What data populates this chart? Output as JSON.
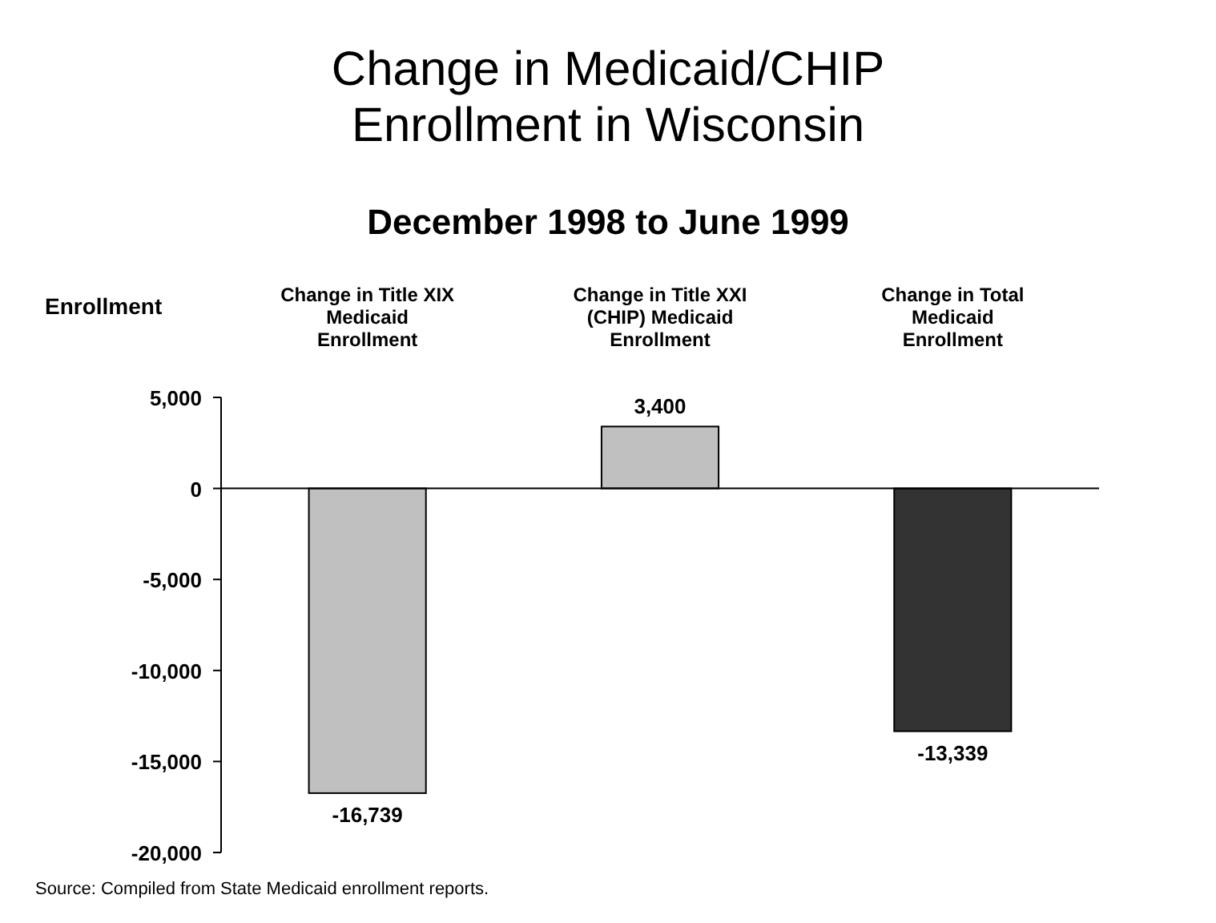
{
  "chart_data": {
    "type": "bar",
    "title": "Change in Medicaid/CHIP Enrollment in Wisconsin",
    "subtitle": "December 1998 to June 1999",
    "ylabel": "Enrollment",
    "categories": [
      "Change in Title XIX Medicaid Enrollment",
      "Change in Title XXI (CHIP) Medicaid Enrollment",
      "Change in Total Medicaid Enrollment"
    ],
    "values": [
      -16739,
      3400,
      -13339
    ],
    "colors": [
      "#c0c0c0",
      "#c0c0c0",
      "#333333"
    ],
    "value_labels": [
      "-16,739",
      "3,400",
      "-13,339"
    ],
    "ylim": [
      -20000,
      5000
    ],
    "yticks": [
      {
        "value": -20000,
        "label": "-20,000"
      },
      {
        "value": -15000,
        "label": "-15,000"
      },
      {
        "value": -10000,
        "label": "-10,000"
      },
      {
        "value": -5000,
        "label": "-5,000"
      },
      0,
      {
        "value": 5000,
        "label": "5,000"
      }
    ],
    "annotations": [
      "Source: Compiled from State Medicaid enrollment reports."
    ]
  }
}
